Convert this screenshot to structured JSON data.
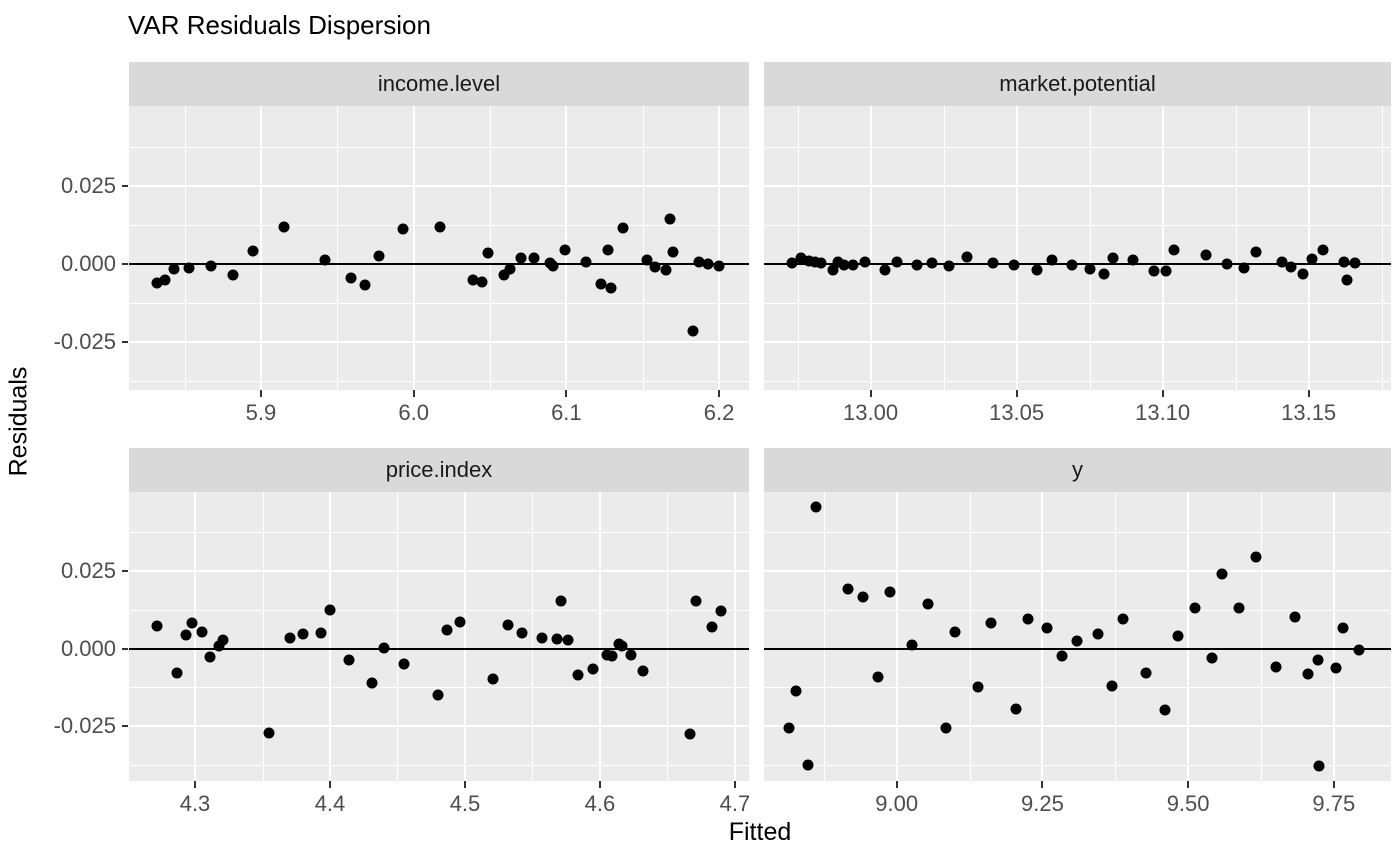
{
  "title": "VAR Residuals Dispersion",
  "axes": {
    "x_title": "Fitted",
    "y_title": "Residuals"
  },
  "chart_data": {
    "type": "scatter",
    "title": "VAR Residuals Dispersion",
    "xlabel": "Fitted",
    "ylabel": "Residuals",
    "legend": "none",
    "grid": "on",
    "colors": {
      "background": "#FFFFFF",
      "panel_bg": "#EBEBEB",
      "strip_bg": "#D9D9D9",
      "strip_text": "#1A1A1A",
      "grid": "#FFFFFF",
      "point": "#000000",
      "zero_line": "#000000",
      "tick_mark": "#333333",
      "tick_label": "#4D4D4D",
      "title_text": "#000000",
      "axis_title_text": "#000000"
    },
    "yticks": [
      {
        "v": 0.025,
        "t": "0.025"
      },
      {
        "v": 0.0,
        "t": "0.000"
      },
      {
        "v": -0.025,
        "t": "-0.025"
      }
    ],
    "y_minor": [
      -0.0375,
      -0.0125,
      0.0125,
      0.0375
    ],
    "zero_line_y": 0,
    "facets": [
      {
        "label": "income.level",
        "xlim": [
          5.8136,
          6.2196
        ],
        "ylim": [
          -0.0404,
          0.0506
        ],
        "xticks": [
          {
            "v": 5.9,
            "t": "5.9"
          },
          {
            "v": 6.0,
            "t": "6.0"
          },
          {
            "v": 6.1,
            "t": "6.1"
          },
          {
            "v": 6.2,
            "t": "6.2"
          }
        ],
        "x_minor": [
          5.85,
          5.95,
          6.05,
          6.15
        ],
        "points": [
          [
            5.832,
            -0.0061
          ],
          [
            5.837,
            -0.005
          ],
          [
            5.843,
            -0.0017
          ],
          [
            5.853,
            -0.0014
          ],
          [
            5.867,
            -0.0007
          ],
          [
            5.882,
            -0.0037
          ],
          [
            5.895,
            0.0042
          ],
          [
            5.915,
            0.0119
          ],
          [
            5.942,
            0.0011
          ],
          [
            5.959,
            -0.0045
          ],
          [
            5.968,
            -0.0066
          ],
          [
            5.977,
            0.0024
          ],
          [
            5.993,
            0.0111
          ],
          [
            6.017,
            0.0119
          ],
          [
            6.039,
            -0.0053
          ],
          [
            6.045,
            -0.0058
          ],
          [
            6.049,
            0.0035
          ],
          [
            6.059,
            -0.0037
          ],
          [
            6.063,
            -0.0016
          ],
          [
            6.07,
            0.0019
          ],
          [
            6.079,
            0.0018
          ],
          [
            6.089,
            0.0002
          ],
          [
            6.091,
            -0.0007
          ],
          [
            6.099,
            0.0045
          ],
          [
            6.113,
            0.0007
          ],
          [
            6.123,
            -0.0063
          ],
          [
            6.127,
            0.0045
          ],
          [
            6.129,
            -0.0077
          ],
          [
            6.137,
            0.0116
          ],
          [
            6.153,
            0.0011
          ],
          [
            6.158,
            -0.0011
          ],
          [
            6.165,
            -0.0021
          ],
          [
            6.168,
            0.0145
          ],
          [
            6.17,
            0.0039
          ],
          [
            6.183,
            -0.0216
          ],
          [
            6.187,
            0.0005
          ],
          [
            6.193,
            0.0
          ],
          [
            6.2,
            -0.0007
          ]
        ]
      },
      {
        "label": "market.potential",
        "xlim": [
          12.9635,
          13.1782
        ],
        "ylim": [
          -0.0404,
          0.0506
        ],
        "xticks": [
          {
            "v": 13.0,
            "t": "13.00"
          },
          {
            "v": 13.05,
            "t": "13.05"
          },
          {
            "v": 13.1,
            "t": "13.10"
          },
          {
            "v": 13.15,
            "t": "13.15"
          }
        ],
        "x_minor": [
          12.975,
          13.025,
          13.075,
          13.125,
          13.175
        ],
        "points": [
          [
            12.973,
            0.0003
          ],
          [
            12.976,
            0.0019
          ],
          [
            12.979,
            0.0009
          ],
          [
            12.981,
            0.0005
          ],
          [
            12.983,
            0.0002
          ],
          [
            12.987,
            -0.0019
          ],
          [
            12.989,
            0.0005
          ],
          [
            12.991,
            -0.0003
          ],
          [
            12.994,
            -0.0003
          ],
          [
            12.998,
            0.0005
          ],
          [
            13.005,
            -0.0021
          ],
          [
            13.009,
            0.0005
          ],
          [
            13.016,
            -0.0002
          ],
          [
            13.021,
            0.0002
          ],
          [
            13.027,
            -0.0007
          ],
          [
            13.033,
            0.0021
          ],
          [
            13.042,
            0.0003
          ],
          [
            13.049,
            -0.0002
          ],
          [
            13.057,
            -0.0019
          ],
          [
            13.062,
            0.0013
          ],
          [
            13.069,
            -0.0002
          ],
          [
            13.075,
            -0.0016
          ],
          [
            13.08,
            -0.0032
          ],
          [
            13.083,
            0.0019
          ],
          [
            13.09,
            0.0011
          ],
          [
            13.097,
            -0.0024
          ],
          [
            13.101,
            -0.0024
          ],
          [
            13.104,
            0.0043
          ],
          [
            13.115,
            0.0027
          ],
          [
            13.122,
            0.0
          ],
          [
            13.128,
            -0.0013
          ],
          [
            13.132,
            0.0037
          ],
          [
            13.141,
            0.0005
          ],
          [
            13.144,
            -0.0009
          ],
          [
            13.148,
            -0.0032
          ],
          [
            13.151,
            0.0016
          ],
          [
            13.155,
            0.0045
          ],
          [
            13.162,
            0.0005
          ],
          [
            13.163,
            -0.0051
          ],
          [
            13.166,
            0.0002
          ]
        ]
      },
      {
        "label": "price.index",
        "xlim": [
          4.2511,
          4.7104
        ],
        "ylim": [
          -0.0425,
          0.0502
        ],
        "xticks": [
          {
            "v": 4.3,
            "t": "4.3"
          },
          {
            "v": 4.4,
            "t": "4.4"
          },
          {
            "v": 4.5,
            "t": "4.5"
          },
          {
            "v": 4.6,
            "t": "4.6"
          },
          {
            "v": 4.7,
            "t": "4.7"
          }
        ],
        "x_minor": [
          4.35,
          4.45,
          4.55,
          4.65
        ],
        "points": [
          [
            4.272,
            0.0071
          ],
          [
            4.287,
            -0.0079
          ],
          [
            4.293,
            0.0042
          ],
          [
            4.298,
            0.0081
          ],
          [
            4.305,
            0.0053
          ],
          [
            4.311,
            -0.0026
          ],
          [
            4.318,
            0.0007
          ],
          [
            4.321,
            0.0026
          ],
          [
            4.355,
            -0.0271
          ],
          [
            4.37,
            0.0035
          ],
          [
            4.38,
            0.0047
          ],
          [
            4.393,
            0.005
          ],
          [
            4.4,
            0.0123
          ],
          [
            4.414,
            -0.0037
          ],
          [
            4.431,
            -0.0111
          ],
          [
            4.44,
            0.0003
          ],
          [
            4.455,
            -0.005
          ],
          [
            4.48,
            -0.0148
          ],
          [
            4.487,
            0.006
          ],
          [
            4.496,
            0.0084
          ],
          [
            4.521,
            -0.0098
          ],
          [
            4.532,
            0.0074
          ],
          [
            4.542,
            0.005
          ],
          [
            4.557,
            0.0035
          ],
          [
            4.568,
            0.0032
          ],
          [
            4.571,
            0.0153
          ],
          [
            4.576,
            0.0026
          ],
          [
            4.584,
            -0.0084
          ],
          [
            4.595,
            -0.0066
          ],
          [
            4.605,
            -0.0021
          ],
          [
            4.609,
            -0.0024
          ],
          [
            4.614,
            0.0014
          ],
          [
            4.616,
            0.0007
          ],
          [
            4.623,
            -0.0021
          ],
          [
            4.632,
            -0.0071
          ],
          [
            4.667,
            -0.0274
          ],
          [
            4.671,
            0.0151
          ],
          [
            4.683,
            0.0069
          ],
          [
            4.69,
            0.0121
          ]
        ]
      },
      {
        "label": "y",
        "xlim": [
          8.7723,
          9.8481
        ],
        "ylim": [
          -0.0425,
          0.0502
        ],
        "xticks": [
          {
            "v": 9.0,
            "t": "9.00"
          },
          {
            "v": 9.25,
            "t": "9.25"
          },
          {
            "v": 9.5,
            "t": "9.50"
          },
          {
            "v": 9.75,
            "t": "9.75"
          }
        ],
        "x_minor": [
          8.875,
          9.125,
          9.375,
          9.625
        ],
        "points": [
          [
            8.815,
            -0.0256
          ],
          [
            8.827,
            -0.0137
          ],
          [
            8.848,
            -0.0374
          ],
          [
            8.861,
            0.0455
          ],
          [
            8.917,
            0.019
          ],
          [
            8.942,
            0.0166
          ],
          [
            8.968,
            -0.009
          ],
          [
            8.989,
            0.0181
          ],
          [
            9.027,
            0.0011
          ],
          [
            9.053,
            0.0142
          ],
          [
            9.084,
            -0.0254
          ],
          [
            9.1,
            0.0052
          ],
          [
            9.14,
            -0.0124
          ],
          [
            9.161,
            0.0083
          ],
          [
            9.204,
            -0.0193
          ],
          [
            9.226,
            0.0094
          ],
          [
            9.258,
            0.0065
          ],
          [
            9.284,
            -0.0024
          ],
          [
            9.31,
            0.0025
          ],
          [
            9.345,
            0.0047
          ],
          [
            9.369,
            -0.0121
          ],
          [
            9.388,
            0.0094
          ],
          [
            9.428,
            -0.0079
          ],
          [
            9.461,
            -0.0198
          ],
          [
            9.483,
            0.0041
          ],
          [
            9.511,
            0.0129
          ],
          [
            9.541,
            -0.003
          ],
          [
            9.558,
            0.0239
          ],
          [
            9.587,
            0.0129
          ],
          [
            9.616,
            0.0292
          ],
          [
            9.65,
            -0.0058
          ],
          [
            9.683,
            0.0102
          ],
          [
            9.706,
            -0.0082
          ],
          [
            9.722,
            -0.0037
          ],
          [
            9.725,
            -0.0378
          ],
          [
            9.754,
            -0.0061
          ],
          [
            9.766,
            0.0065
          ],
          [
            9.794,
            -0.0006
          ]
        ]
      }
    ]
  }
}
